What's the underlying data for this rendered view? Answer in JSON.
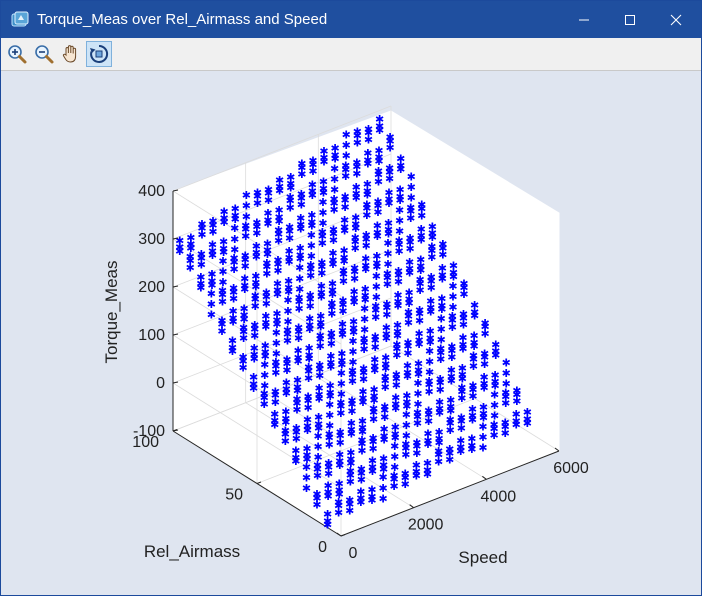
{
  "window": {
    "title": "Torque_Meas over Rel_Airmass and Speed",
    "accent": "#1f4f9f",
    "controls": [
      "minimize-icon",
      "maximize-icon",
      "close-icon"
    ]
  },
  "toolbar": {
    "tools": [
      {
        "name": "zoom-in",
        "icon": "zoom-in-icon"
      },
      {
        "name": "zoom-out",
        "icon": "zoom-out-icon"
      },
      {
        "name": "pan",
        "icon": "hand-icon"
      },
      {
        "name": "rotate-3d",
        "icon": "rotate-icon",
        "active": true
      }
    ]
  },
  "chart_data": {
    "type": "scatter3d",
    "title": "",
    "xlabel": "Speed",
    "ylabel": "Rel_Airmass",
    "zlabel": "Torque_Meas",
    "xlim": [
      0,
      6000
    ],
    "ylim": [
      0,
      100
    ],
    "zlim": [
      -100,
      400
    ],
    "xticks": [
      0,
      2000,
      4000,
      6000
    ],
    "yticks": [
      0,
      50,
      100
    ],
    "zticks": [
      -100,
      0,
      100,
      200,
      300,
      400
    ],
    "grid": true,
    "marker": "*",
    "color": "#0000ff",
    "speed_range": [
      0,
      5500
    ],
    "rel_airmass_range": [
      8,
      96
    ],
    "grid_speed_steps": 18,
    "grid_airmass_steps": 14,
    "surface_note_values": {
      "torque_at_low_speed_high_airmass": 300,
      "torque_at_high_speed_high_airmass": 390,
      "torque_at_low_speed_low_airmass": -70,
      "torque_at_high_speed_low_airmass": -20
    }
  }
}
